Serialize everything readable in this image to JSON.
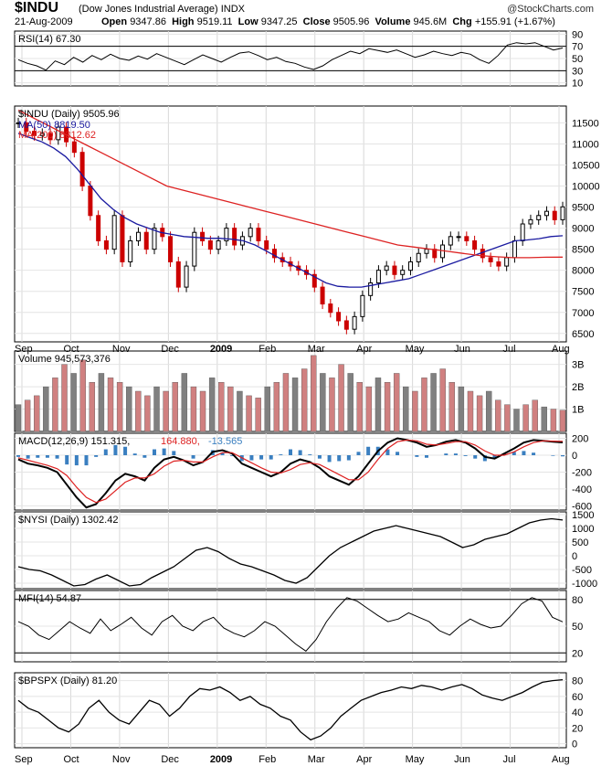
{
  "header": {
    "ticker": "$INDU",
    "name": "(Dow Jones Industrial Average) INDX",
    "date": "21-Aug-2009",
    "open_label": "Open",
    "open": "9347.86",
    "high_label": "High",
    "high": "9519.11",
    "low_label": "Low",
    "low": "9347.25",
    "close_label": "Close",
    "close": "9505.96",
    "volume_label": "Volume",
    "volume": "945.6M",
    "chg_label": "Chg",
    "chg": "+155.91 (+1.67%)",
    "brand": "@StockCharts.com"
  },
  "x_labels": [
    "Sep",
    "Oct",
    "Nov",
    "Dec",
    "2009",
    "Feb",
    "Mar",
    "Apr",
    "May",
    "Jun",
    "Jul",
    "Aug"
  ],
  "colors": {
    "up": "#000000",
    "down": "#cc0000",
    "ma50": "#1a1aa0",
    "ma200": "#dd2222",
    "macd_hist": "#3a7fc0",
    "overbought_fill": "#3d7d3d",
    "volume_up": "#808080",
    "volume_down": "#d08080"
  },
  "chart_data": [
    {
      "type": "line",
      "panel": "rsi",
      "legend": "RSI(14) 67.30",
      "y_ticks": [
        90,
        70,
        50,
        30,
        10
      ],
      "ylim": [
        5,
        95
      ],
      "reference_lines": [
        70,
        30
      ],
      "series": [
        {
          "name": "RSI(14)",
          "values": [
            48,
            42,
            38,
            31,
            46,
            40,
            52,
            44,
            55,
            48,
            57,
            50,
            47,
            54,
            49,
            58,
            52,
            46,
            40,
            48,
            56,
            50,
            44,
            52,
            59,
            61,
            55,
            48,
            52,
            45,
            42,
            36,
            32,
            38,
            48,
            55,
            62,
            58,
            66,
            63,
            60,
            64,
            58,
            52,
            56,
            62,
            58,
            55,
            60,
            57,
            48,
            42,
            55,
            72,
            76,
            74,
            76,
            70,
            64,
            67.3
          ]
        }
      ]
    },
    {
      "type": "candlestick",
      "panel": "price",
      "legend": "$INDU (Daily) 9505.96",
      "ylim": [
        6300,
        11900
      ],
      "y_ticks": [
        11500,
        11000,
        10500,
        10000,
        9500,
        9000,
        8500,
        8000,
        7500,
        7000,
        6500
      ],
      "series": [
        {
          "name": "$INDU (Daily)",
          "values": [
            11500,
            11300,
            11200,
            11250,
            11100,
            11400,
            11050,
            10800,
            10000,
            9300,
            8700,
            8500,
            9300,
            8200,
            8700,
            8900,
            8500,
            9000,
            8800,
            8200,
            7600,
            8100,
            8900,
            8700,
            8500,
            8700,
            9000,
            8600,
            8800,
            9000,
            8700,
            8500,
            8300,
            8200,
            8100,
            8000,
            7900,
            7600,
            7200,
            7000,
            6800,
            6600,
            6900,
            7400,
            7700,
            8000,
            8100,
            7900,
            8000,
            8200,
            8400,
            8500,
            8300,
            8600,
            8800,
            8800,
            8700,
            8500,
            8300,
            8200,
            8100,
            8300,
            8700,
            9100,
            9200,
            9300,
            9400,
            9200,
            9505.96
          ]
        },
        {
          "name": "MA(50) 8819.50",
          "values": [
            11250,
            11150,
            11050,
            10900,
            10700,
            10400,
            10050,
            9700,
            9450,
            9250,
            9100,
            9000,
            8900,
            8850,
            8800,
            8780,
            8760,
            8760,
            8740,
            8700,
            8600,
            8450,
            8300,
            8150,
            8000,
            7850,
            7700,
            7620,
            7600,
            7600,
            7650,
            7700,
            7750,
            7800,
            7900,
            8000,
            8100,
            8200,
            8300,
            8400,
            8500,
            8600,
            8700,
            8720,
            8750,
            8800,
            8819.5
          ]
        },
        {
          "name": "MA(200) 8312.62",
          "values": [
            11800,
            11600,
            11400,
            11200,
            11000,
            10800,
            10600,
            10400,
            10200,
            10000,
            9900,
            9800,
            9700,
            9600,
            9500,
            9400,
            9300,
            9200,
            9100,
            9000,
            8900,
            8800,
            8700,
            8600,
            8550,
            8500,
            8450,
            8400,
            8350,
            8320,
            8300,
            8300,
            8310,
            8312.62
          ]
        }
      ]
    },
    {
      "type": "bar",
      "panel": "volume",
      "legend": "Volume 945,573,376",
      "y_ticks": [
        "3B",
        "2B",
        "1B"
      ],
      "ylim": [
        0,
        3.6
      ],
      "series": [
        {
          "name": "Volume",
          "values": [
            1.2,
            1.4,
            1.6,
            2.0,
            2.4,
            3.0,
            2.6,
            3.2,
            2.2,
            2.6,
            2.4,
            2.2,
            2.0,
            1.8,
            1.6,
            2.0,
            1.8,
            2.2,
            2.6,
            2.0,
            1.8,
            2.4,
            2.2,
            2.0,
            1.8,
            1.6,
            1.5,
            2.0,
            2.2,
            2.6,
            2.4,
            2.8,
            3.4,
            2.6,
            2.4,
            3.0,
            2.6,
            2.2,
            2.0,
            2.4,
            2.2,
            2.6,
            2.0,
            1.8,
            2.4,
            2.6,
            2.8,
            2.2,
            2.0,
            1.8,
            1.6,
            1.8,
            1.4,
            1.2,
            1.0,
            1.2,
            1.4,
            1.1,
            1.0,
            0.95
          ]
        }
      ]
    },
    {
      "type": "line",
      "panel": "macd",
      "legend_main": "MACD(12,26,9) 151.315,",
      "legend_signal": "164.880,",
      "legend_hist": "-13.565",
      "y_ticks": [
        200,
        0,
        -200,
        -400,
        -600
      ],
      "ylim": [
        -650,
        260
      ],
      "series": [
        {
          "name": "MACD",
          "values": [
            -50,
            -100,
            -120,
            -150,
            -200,
            -350,
            -500,
            -620,
            -580,
            -450,
            -300,
            -220,
            -250,
            -300,
            -150,
            -50,
            -20,
            -60,
            -120,
            -80,
            40,
            60,
            20,
            -100,
            -150,
            -200,
            -250,
            -200,
            -100,
            -50,
            -80,
            -150,
            -250,
            -300,
            -350,
            -250,
            -100,
            50,
            150,
            200,
            180,
            150,
            100,
            120,
            160,
            180,
            150,
            80,
            -20,
            -40,
            20,
            80,
            150,
            180,
            170,
            160,
            151.315
          ]
        },
        {
          "name": "Signal",
          "values": [
            -30,
            -60,
            -90,
            -120,
            -160,
            -240,
            -380,
            -500,
            -560,
            -520,
            -420,
            -320,
            -270,
            -270,
            -220,
            -130,
            -70,
            -60,
            -80,
            -80,
            -20,
            30,
            30,
            -30,
            -90,
            -150,
            -200,
            -210,
            -170,
            -110,
            -90,
            -110,
            -170,
            -230,
            -290,
            -290,
            -200,
            -50,
            80,
            160,
            180,
            170,
            130,
            120,
            140,
            160,
            160,
            120,
            50,
            0,
            0,
            40,
            100,
            150,
            170,
            167,
            164.88
          ]
        }
      ]
    },
    {
      "type": "line",
      "panel": "nysi",
      "legend": "$NYSI (Daily) 1302.42",
      "y_ticks": [
        1500,
        1000,
        500,
        0,
        -500,
        -1000
      ],
      "ylim": [
        -1200,
        1600
      ],
      "series": [
        {
          "name": "$NYSI (Daily)",
          "values": [
            -400,
            -500,
            -550,
            -700,
            -900,
            -1100,
            -1050,
            -850,
            -700,
            -900,
            -1100,
            -1050,
            -800,
            -600,
            -400,
            -100,
            200,
            300,
            150,
            -100,
            -300,
            -400,
            -550,
            -700,
            -900,
            -1000,
            -800,
            -400,
            0,
            300,
            500,
            700,
            900,
            1000,
            1100,
            1000,
            900,
            800,
            700,
            500,
            300,
            400,
            600,
            700,
            800,
            1000,
            1200,
            1300,
            1350,
            1302.42
          ]
        }
      ]
    },
    {
      "type": "line",
      "panel": "mfi",
      "legend": "MFI(14) 54.87",
      "y_ticks": [
        80,
        50,
        20
      ],
      "ylim": [
        10,
        90
      ],
      "reference_lines": [
        80,
        20
      ],
      "series": [
        {
          "name": "MFI(14)",
          "values": [
            55,
            50,
            40,
            35,
            45,
            55,
            48,
            42,
            58,
            45,
            52,
            60,
            48,
            40,
            55,
            62,
            50,
            45,
            55,
            60,
            48,
            42,
            38,
            45,
            55,
            50,
            40,
            30,
            22,
            35,
            55,
            70,
            82,
            78,
            70,
            62,
            55,
            58,
            65,
            60,
            55,
            45,
            40,
            50,
            58,
            52,
            48,
            50,
            62,
            75,
            82,
            78,
            60,
            54.87
          ]
        }
      ]
    },
    {
      "type": "line",
      "panel": "bpspx",
      "legend": "$BPSPX (Daily) 81.20",
      "y_ticks": [
        80,
        60,
        40,
        20,
        0
      ],
      "ylim": [
        -5,
        90
      ],
      "series": [
        {
          "name": "$BPSPX (Daily)",
          "values": [
            55,
            45,
            40,
            30,
            20,
            15,
            25,
            45,
            55,
            40,
            30,
            25,
            40,
            55,
            50,
            35,
            45,
            60,
            70,
            68,
            72,
            65,
            55,
            60,
            50,
            45,
            35,
            30,
            15,
            5,
            10,
            20,
            35,
            45,
            55,
            60,
            65,
            68,
            72,
            70,
            74,
            72,
            68,
            72,
            75,
            70,
            62,
            58,
            55,
            60,
            65,
            72,
            78,
            80,
            81.2
          ]
        }
      ]
    }
  ]
}
